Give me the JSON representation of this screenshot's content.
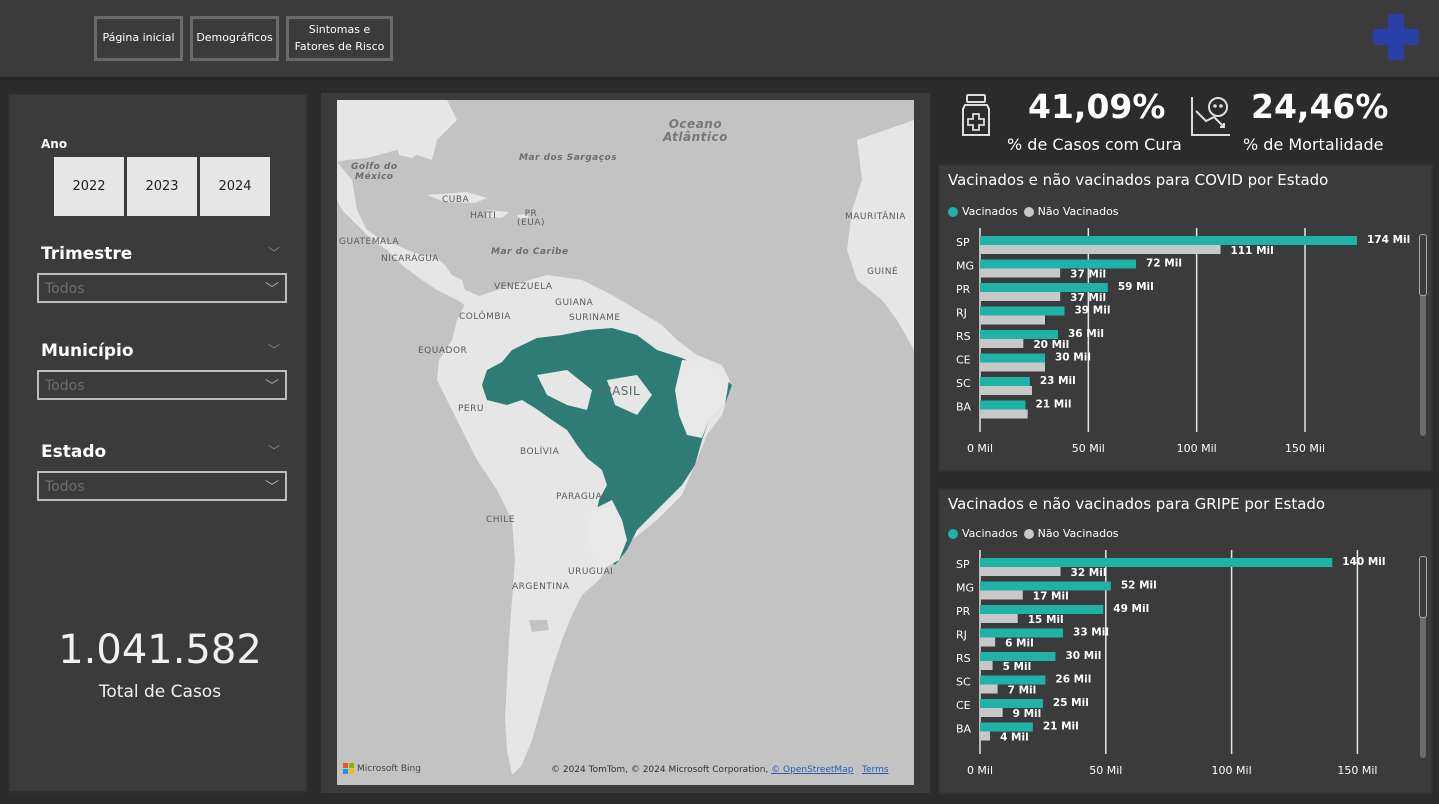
{
  "nav": {
    "home": "Página inicial",
    "demographics": "Demográficos",
    "symptoms": "Sintomas e\nFatores de Risco"
  },
  "filters": {
    "year_label": "Ano",
    "years": [
      "2022",
      "2023",
      "2024"
    ],
    "quarter_label": "Trimestre",
    "quarter_value": "Todos",
    "city_label": "Município",
    "city_value": "Todos",
    "state_label": "Estado",
    "state_value": "Todos"
  },
  "total": {
    "value": "1.041.582",
    "label": "Total de Casos"
  },
  "kpis": {
    "cure_value": "41,09%",
    "cure_label": "% de Casos com Cura",
    "mortality_value": "24,46%",
    "mortality_label": "% de Mortalidade"
  },
  "map": {
    "labels": {
      "oceano": "Oceano\nAtlântico",
      "sargacos": "Mar dos Sargaços",
      "golfo": "Golfo do\nMéxico",
      "cuba": "CUBA",
      "haiti": "HAITI",
      "pr": "PR\n(EUA)",
      "guatemala": "GUATEMALA",
      "nicaragua": "NICARÁGUA",
      "caribe": "Mar do Caribe",
      "venezuela": "VENEZUELA",
      "guiana": "GUIANA",
      "suriname": "SURINAME",
      "colombia": "COLÔMBIA",
      "equador": "EQUADOR",
      "brasil": "BRASIL",
      "peru": "PERU",
      "bolivia": "BOLÍVIA",
      "paraguai": "PARAGUAI",
      "chile": "CHILE",
      "uruguai": "URUGUAI",
      "argentina": "ARGENTINA",
      "mauritania": "MAURITÂNIA",
      "guine": "GUINÉ"
    },
    "attribution": "© 2024 TomTom, © 2024 Microsoft Corporation,",
    "osm": "© OpenStreetMap",
    "terms": "Terms",
    "bing": "Microsoft Bing"
  },
  "colors": {
    "vacinados": "#1fb2a6",
    "nao_vacinados": "#c8c8c8",
    "map_fill": "#2e7d74",
    "logo": "#2a3ea8"
  },
  "chart_data": [
    {
      "type": "bar",
      "orientation": "horizontal",
      "title": "Vacinados e não vacinados para COVID por Estado",
      "categories": [
        "SP",
        "MG",
        "PR",
        "RJ",
        "RS",
        "CE",
        "SC",
        "BA"
      ],
      "series": [
        {
          "name": "Vacinados",
          "values": [
            174,
            72,
            59,
            39,
            36,
            30,
            23,
            21
          ],
          "labels": [
            "174 Mil",
            "72 Mil",
            "59 Mil",
            "39 Mil",
            "36 Mil",
            "30 Mil",
            "23 Mil",
            "21 Mil"
          ]
        },
        {
          "name": "Não Vacinados",
          "values": [
            111,
            37,
            37,
            30,
            20,
            30,
            24,
            22
          ],
          "labels": [
            "111 Mil",
            "37 Mil",
            "37 Mil",
            "",
            "20 Mil",
            "",
            "",
            ""
          ]
        }
      ],
      "xticks": [
        "0 Mil",
        "50 Mil",
        "100 Mil",
        "150 Mil"
      ],
      "xlim": [
        0,
        180
      ],
      "grid": true,
      "legend": "top-left"
    },
    {
      "type": "bar",
      "orientation": "horizontal",
      "title": "Vacinados e não vacinados para GRIPE por Estado",
      "categories": [
        "SP",
        "MG",
        "PR",
        "RJ",
        "RS",
        "SC",
        "CE",
        "BA"
      ],
      "series": [
        {
          "name": "Vacinados",
          "values": [
            140,
            52,
            49,
            33,
            30,
            26,
            25,
            21
          ],
          "labels": [
            "140 Mil",
            "52 Mil",
            "49 Mil",
            "33 Mil",
            "30 Mil",
            "26 Mil",
            "25 Mil",
            "21 Mil"
          ]
        },
        {
          "name": "Não Vacinados",
          "values": [
            32,
            17,
            15,
            6,
            5,
            7,
            9,
            4
          ],
          "labels": [
            "32 Mil",
            "17 Mil",
            "15 Mil",
            "6 Mil",
            "5 Mil",
            "7 Mil",
            "9 Mil",
            "4 Mil"
          ]
        }
      ],
      "xticks": [
        "0 Mil",
        "50 Mil",
        "100 Mil",
        "150 Mil"
      ],
      "xlim": [
        0,
        155
      ],
      "grid": true,
      "legend": "top-left"
    }
  ]
}
